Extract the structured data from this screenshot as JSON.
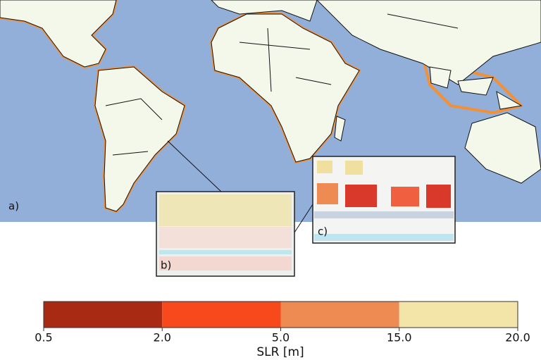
{
  "map": {
    "panel_labels": [
      "a)",
      "b)",
      "c)"
    ]
  },
  "colorbar": {
    "label": "SLR [m]",
    "boundaries": [
      0.5,
      {
        "value": 2,
        "label": "2.0"
      },
      {
        "value": 5,
        "label": "5.0"
      },
      {
        "value": 15,
        "label": "15.0"
      },
      {
        "value": 20,
        "label": "20.0"
      }
    ],
    "colors": [
      "#a92a12",
      "#f7491b",
      "#ee8b52",
      "#f3e4a8"
    ]
  }
}
